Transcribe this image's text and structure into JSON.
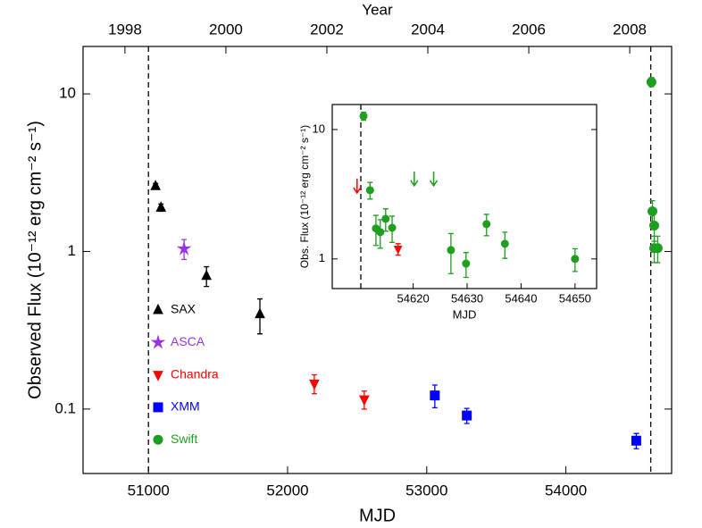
{
  "chart_data": [
    {
      "type": "scatter",
      "xlabel": "MJD",
      "ylabel": "Observed Flux (10⁻¹² erg cm⁻² s⁻¹)",
      "x2label": "Year",
      "xlim": [
        50530,
        54760
      ],
      "xticks": [
        51000,
        52000,
        53000,
        54000
      ],
      "x2lim": [
        1997.17,
        2008.83
      ],
      "x2ticks": [
        1998,
        2000,
        2002,
        2004,
        2006,
        2008
      ],
      "ylim": [
        0.039,
        20
      ],
      "yticks": [
        0.1,
        1,
        10
      ],
      "log_y": true,
      "vlines": [
        51000,
        54610
      ],
      "series": [
        {
          "name": "SAX",
          "color": "#000000",
          "marker": "triangle-up",
          "x": [
            51051,
            51090,
            51417,
            51801
          ],
          "values": [
            2.6,
            1.9,
            0.7,
            0.4
          ],
          "errors": [
            0.1,
            0.1,
            0.1,
            0.1
          ]
        },
        {
          "name": "ASCA",
          "color": "#9932e6",
          "marker": "star",
          "x": [
            51256
          ],
          "values": [
            1.04
          ],
          "errors": [
            0.15
          ]
        },
        {
          "name": "Chandra",
          "color": "#ff0000",
          "marker": "triangle-down",
          "x": [
            52192,
            52551
          ],
          "values": [
            0.145,
            0.115
          ],
          "errors": [
            0.02,
            0.015
          ]
        },
        {
          "name": "XMM",
          "color": "#0000ff",
          "marker": "square",
          "x": [
            53058,
            53288,
            54506
          ],
          "values": [
            0.122,
            0.091,
            0.063
          ],
          "errors": [
            0.02,
            0.01,
            0.007
          ]
        },
        {
          "name": "Swift",
          "color": "#1f9e1f",
          "marker": "circle",
          "x": [
            54615,
            54622,
            54635,
            54635,
            54660
          ],
          "values": [
            11.9,
            1.8,
            1.46,
            1.05,
            1.05
          ],
          "errors": [
            0.8,
            0.3,
            0.3,
            0.2,
            0.2
          ]
        }
      ]
    },
    {
      "type": "scatter",
      "xlabel": "MJD",
      "ylabel": "Obs. Flux (10⁻¹² erg cm⁻² s⁻¹)",
      "xlim": [
        54605,
        54654
      ],
      "xticks": [
        54620,
        54630,
        54640,
        54650
      ],
      "ylim": [
        0.59,
        15.6
      ],
      "yticks": [
        1,
        10
      ],
      "log_y": true,
      "vlines": [
        54610.3
      ],
      "series": [
        {
          "color": "#1f9e1f",
          "marker": "circle",
          "x": [
            54610.8,
            54612,
            54613.1,
            54613.9,
            54614.9,
            54616.1,
            54627,
            54629.8,
            54633.6,
            54637,
            54650
          ],
          "values": [
            12.7,
            3.4,
            1.72,
            1.61,
            2.04,
            1.74,
            1.17,
            0.92,
            1.86,
            1.31,
            1.0
          ],
          "errors": [
            0.9,
            0.5,
            0.45,
            0.4,
            0.4,
            0.4,
            0.4,
            0.2,
            0.35,
            0.3,
            0.2
          ]
        },
        {
          "color": "#1f9e1f",
          "marker": "arrow",
          "x": [
            54620.2,
            54623.8
          ],
          "values": [
            4.74,
            4.74
          ]
        },
        {
          "color": "#ff0000",
          "marker": "arrow",
          "x": [
            54609.6
          ],
          "values": [
            4.17
          ]
        },
        {
          "color": "#ff0000",
          "marker": "triangle-down",
          "x": [
            54617.2
          ],
          "values": [
            1.19
          ],
          "errors": [
            0.12
          ]
        }
      ]
    }
  ]
}
